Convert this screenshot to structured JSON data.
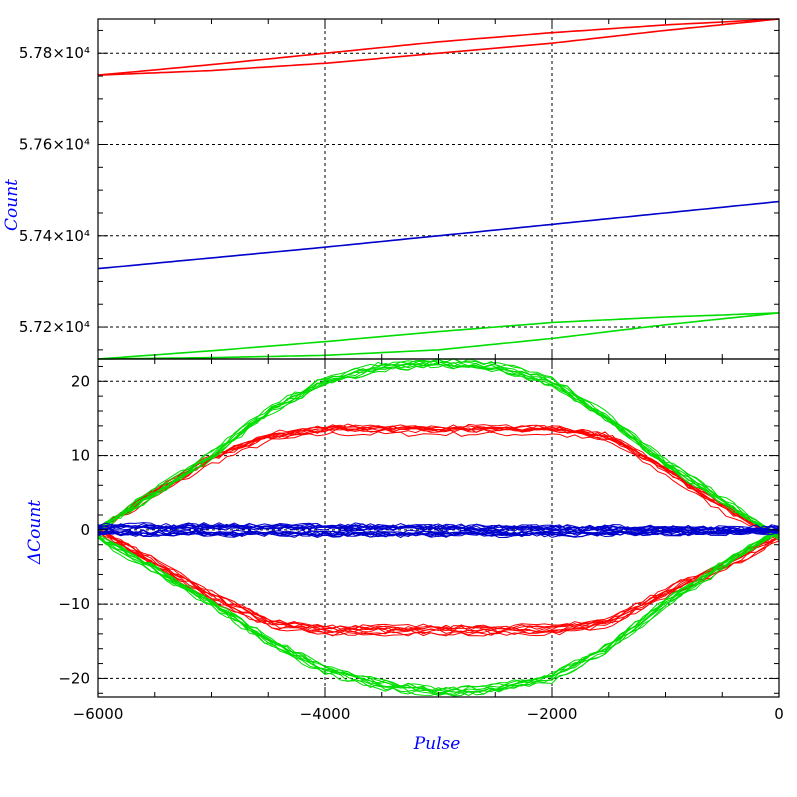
{
  "chart_data": [
    {
      "type": "line",
      "panel": "top",
      "xlabel": "",
      "ylabel": "Count",
      "xlim": [
        -6000,
        0
      ],
      "ylim": [
        57130,
        57875
      ],
      "grid": true,
      "ytick_labels": [
        "5.72×10⁴",
        "5.74×10⁴",
        "5.76×10⁴",
        "5.78×10⁴"
      ],
      "ytick_values": [
        57200,
        57400,
        57600,
        57800
      ],
      "series": [
        {
          "color": "#ff0000",
          "loops": [
            {
              "x": [
                -6000,
                -5000,
                -4000,
                -3000,
                -2000,
                -1000,
                0
              ],
              "y": [
                57752,
                57775,
                57800,
                57825,
                57845,
                57862,
                57875
              ]
            },
            {
              "x": [
                -6000,
                -5000,
                -4000,
                -3000,
                -2000,
                -1000,
                0
              ],
              "y": [
                57752,
                57762,
                57778,
                57800,
                57822,
                57850,
                57875
              ]
            }
          ]
        },
        {
          "color": "#0000cc",
          "loops": [
            {
              "x": [
                -6000,
                -4000,
                -2000,
                0
              ],
              "y": [
                57328,
                57375,
                57425,
                57475
              ]
            }
          ]
        },
        {
          "color": "#00dd00",
          "loops": [
            {
              "x": [
                -6000,
                -5000,
                -4000,
                -3000,
                -2000,
                -1000,
                0
              ],
              "y": [
                57130,
                57148,
                57168,
                57190,
                57210,
                57222,
                57231
              ]
            },
            {
              "x": [
                -6000,
                -5000,
                -4000,
                -3000,
                -2000,
                -1000,
                0
              ],
              "y": [
                57130,
                57133,
                57138,
                57150,
                57175,
                57205,
                57231
              ]
            }
          ]
        }
      ]
    },
    {
      "type": "line",
      "panel": "bottom",
      "xlabel": "Pulse",
      "ylabel": "ΔCount",
      "xlim": [
        -6000,
        0
      ],
      "ylim": [
        -22.5,
        23
      ],
      "grid": true,
      "xtick_values": [
        -6000,
        -4000,
        -2000,
        0
      ],
      "xtick_labels": [
        "−6000",
        "−4000",
        "−2000",
        "0"
      ],
      "ytick_values": [
        -20,
        -10,
        0,
        10,
        20
      ],
      "ytick_labels": [
        "−20",
        "−10",
        "0",
        "10",
        "20"
      ],
      "series": [
        {
          "color": "#ff0000",
          "upper": {
            "x": [
              -6000,
              -5500,
              -5000,
              -4500,
              -4000,
              -3000,
              -2000,
              -1500,
              -1000,
              -500,
              0
            ],
            "y": [
              0,
              5,
              9.5,
              12.5,
              13.5,
              13.5,
              13.5,
              12.5,
              8,
              3,
              -1
            ]
          },
          "lower": {
            "x": [
              -6000,
              -5500,
              -5000,
              -4500,
              -4000,
              -3000,
              -2000,
              -1500,
              -1000,
              -500,
              0
            ],
            "y": [
              0,
              -4.5,
              -9,
              -12.5,
              -13.5,
              -13.5,
              -13.5,
              -12.5,
              -8.5,
              -5,
              -1
            ]
          }
        },
        {
          "color": "#00dd00",
          "upper": {
            "x": [
              -6000,
              -5000,
              -4500,
              -4000,
              -3500,
              -3000,
              -2500,
              -2000,
              -1500,
              -1000,
              -500,
              0
            ],
            "y": [
              0,
              10,
              16,
              20,
              22,
              22.5,
              22,
              20,
              15,
              9,
              4,
              -1
            ]
          },
          "lower": {
            "x": [
              -6000,
              -5000,
              -4500,
              -4000,
              -3500,
              -3000,
              -2500,
              -2000,
              -1500,
              -1000,
              -500,
              0
            ],
            "y": [
              -1,
              -10,
              -15,
              -19,
              -21,
              -22,
              -21.5,
              -20,
              -16,
              -10,
              -5,
              0
            ]
          }
        },
        {
          "color": "#0000cc",
          "upper": {
            "x": [
              -6000,
              -4000,
              -2000,
              0
            ],
            "y": [
              0.5,
              0.5,
              0.3,
              0.2
            ]
          },
          "lower": {
            "x": [
              -6000,
              -4000,
              -2000,
              0
            ],
            "y": [
              -0.5,
              -0.6,
              -0.6,
              -0.3
            ]
          }
        }
      ]
    }
  ]
}
